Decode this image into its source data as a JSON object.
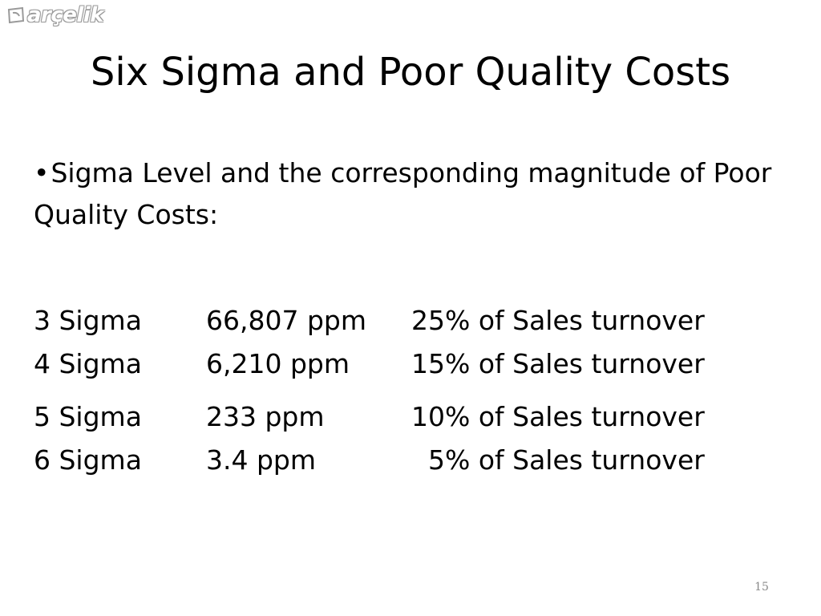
{
  "logo": {
    "text": "arçelik",
    "icon": "arcelik-logo-mark-icon"
  },
  "title": "Six Sigma and Poor Quality Costs",
  "bullet": {
    "marker": "•",
    "text": "Sigma Level and the corresponding magnitude of Poor Quality Costs:"
  },
  "rows": [
    {
      "sigma": "3 Sigma",
      "ppm": "66,807 ppm",
      "cost": "25% of Sales turnover"
    },
    {
      "sigma": "4 Sigma",
      "ppm": "6,210 ppm",
      "cost": "15% of Sales turnover"
    },
    {
      "sigma": "5 Sigma",
      "ppm": "233 ppm",
      "cost": "10% of Sales turnover"
    },
    {
      "sigma": "6 Sigma",
      "ppm": "3.4 ppm",
      "cost": "5% of Sales turnover"
    }
  ],
  "page_number": "15"
}
